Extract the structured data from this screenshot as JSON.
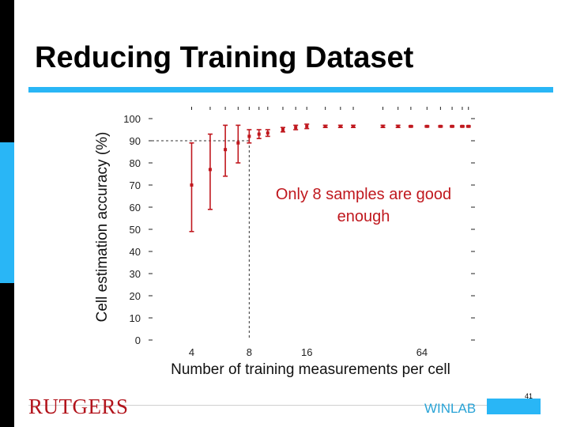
{
  "slide": {
    "title": "Reducing Training Dataset",
    "page_number": "41",
    "logo_text": "RUTGERS",
    "lab_text": "WINLAB",
    "accent_color": "#29b6f6",
    "marker_color": "#c0181e"
  },
  "chart_data": {
    "type": "scatter",
    "xlabel": "Number of training measurements per cell",
    "ylabel": "Cell estimation accuracy (%)",
    "x_scale": "log2",
    "xlim": [
      2.8,
      120
    ],
    "ylim": [
      0,
      100
    ],
    "xticks": [
      4,
      8,
      16,
      64
    ],
    "yticks": [
      0,
      10,
      20,
      30,
      40,
      50,
      60,
      70,
      80,
      90,
      100
    ],
    "reference_x": 8,
    "reference_y": 90,
    "annotation": "Only 8 samples are good enough",
    "points": [
      {
        "x": 4,
        "y": 70,
        "low": 49,
        "high": 89
      },
      {
        "x": 5,
        "y": 77,
        "low": 59,
        "high": 93
      },
      {
        "x": 6,
        "y": 86,
        "low": 74,
        "high": 97
      },
      {
        "x": 7,
        "y": 89,
        "low": 80,
        "high": 97
      },
      {
        "x": 8,
        "y": 92,
        "low": 89,
        "high": 95
      },
      {
        "x": 9,
        "y": 93,
        "low": 91,
        "high": 95
      },
      {
        "x": 10,
        "y": 93.5,
        "low": 92,
        "high": 95
      },
      {
        "x": 12,
        "y": 95,
        "low": 94,
        "high": 96
      },
      {
        "x": 14,
        "y": 96,
        "low": 95,
        "high": 97
      },
      {
        "x": 16,
        "y": 96.5,
        "low": 95.5,
        "high": 97.5
      },
      {
        "x": 20,
        "y": 96.5,
        "low": 96,
        "high": 97
      },
      {
        "x": 24,
        "y": 96.5,
        "low": 96,
        "high": 97
      },
      {
        "x": 28,
        "y": 96.5,
        "low": 96,
        "high": 97
      },
      {
        "x": 40,
        "y": 96.5,
        "low": 96,
        "high": 97
      },
      {
        "x": 48,
        "y": 96.5,
        "low": 96,
        "high": 97
      },
      {
        "x": 56,
        "y": 96.5,
        "low": 96.2,
        "high": 96.8
      },
      {
        "x": 68,
        "y": 96.5,
        "low": 96.2,
        "high": 96.8
      },
      {
        "x": 80,
        "y": 96.5,
        "low": 96.2,
        "high": 96.8
      },
      {
        "x": 92,
        "y": 96.5,
        "low": 96.2,
        "high": 96.8
      },
      {
        "x": 104,
        "y": 96.5,
        "low": 96.2,
        "high": 96.8
      },
      {
        "x": 112,
        "y": 96.5,
        "low": 96.2,
        "high": 96.8
      }
    ]
  }
}
